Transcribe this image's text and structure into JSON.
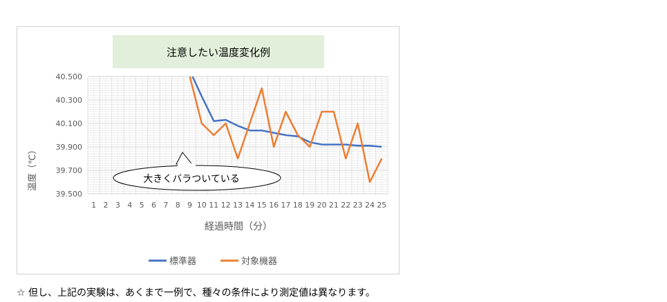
{
  "chart_data": {
    "type": "line",
    "title": "注意したい温度変化例",
    "xlabel": "経過時間（分）",
    "ylabel": "温度（℃）",
    "categories": [
      "1",
      "2",
      "3",
      "4",
      "5",
      "6",
      "7",
      "8",
      "9",
      "10",
      "11",
      "12",
      "13",
      "14",
      "15",
      "16",
      "17",
      "18",
      "19",
      "20",
      "21",
      "22",
      "23",
      "24",
      "25"
    ],
    "ylim": [
      39.5,
      40.5
    ],
    "yticks": [
      "40.500",
      "40.300",
      "40.100",
      "39.900",
      "39.700",
      "39.500"
    ],
    "grid": true,
    "legend_position": "bottom",
    "series": [
      {
        "name": "標準器",
        "color": "#4472c4",
        "values": [
          null,
          null,
          null,
          null,
          null,
          null,
          null,
          null,
          40.55,
          40.33,
          40.12,
          40.13,
          40.08,
          40.04,
          40.04,
          40.02,
          40.0,
          39.99,
          39.94,
          39.92,
          39.92,
          39.92,
          39.91,
          39.91,
          39.9
        ]
      },
      {
        "name": "対象機器",
        "color": "#ed7d31",
        "values": [
          null,
          null,
          null,
          null,
          null,
          null,
          null,
          null,
          40.5,
          40.1,
          40.0,
          40.1,
          39.8,
          40.1,
          40.4,
          39.9,
          40.2,
          40.0,
          39.9,
          40.2,
          40.2,
          39.8,
          40.1,
          39.6,
          39.8
        ]
      }
    ],
    "annotation": "大きくバラついている"
  },
  "footnote": "☆ 但し、上記の実験は、あくまで一例で、種々の条件により測定値は異なります。"
}
